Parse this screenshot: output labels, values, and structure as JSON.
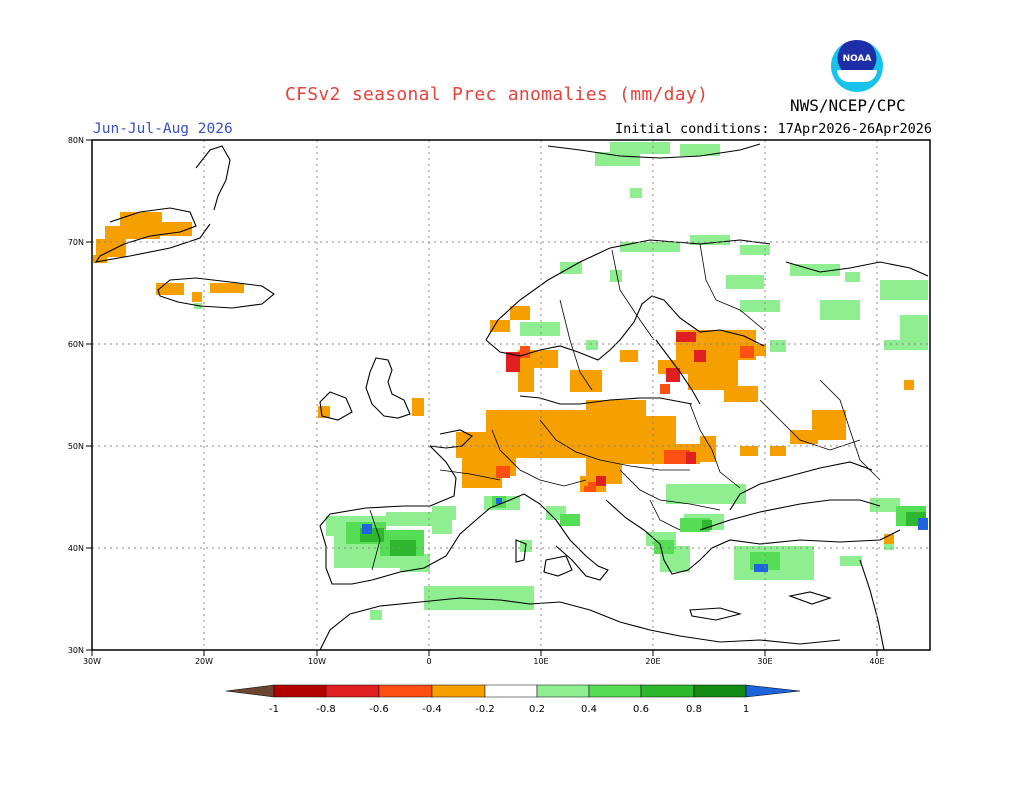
{
  "title": "CFSv2 seasonal Prec anomalies (mm/day)",
  "organization": "NWS/NCEP/CPC",
  "logo_text": "NOAA",
  "season": "Jun-Jul-Aug 2026",
  "initial_conditions": "Initial conditions: 17Apr2026-26Apr2026",
  "map": {
    "lon_ticks": [
      "30W",
      "20W",
      "10W",
      "0",
      "10E",
      "20E",
      "30E",
      "40E"
    ],
    "lat_ticks": [
      "80N",
      "70N",
      "60N",
      "50N",
      "40N",
      "30N"
    ]
  },
  "colorbar": {
    "labels": [
      "-1",
      "-0.8",
      "-0.6",
      "-0.4",
      "-0.2",
      "0.2",
      "0.4",
      "0.6",
      "0.8",
      "1"
    ],
    "colors": {
      "below_min": "#6b4530",
      "n08_n1": "#b30000",
      "n06_n08": "#e02020",
      "n04_n06": "#ff5014",
      "n02_n04": "#f5a000",
      "p02_p04": "#8fee8f",
      "p04_p06": "#55dd55",
      "p06_p08": "#2eb82e",
      "p08_p1": "#118c11",
      "above_max": "#1e64dc"
    }
  }
}
